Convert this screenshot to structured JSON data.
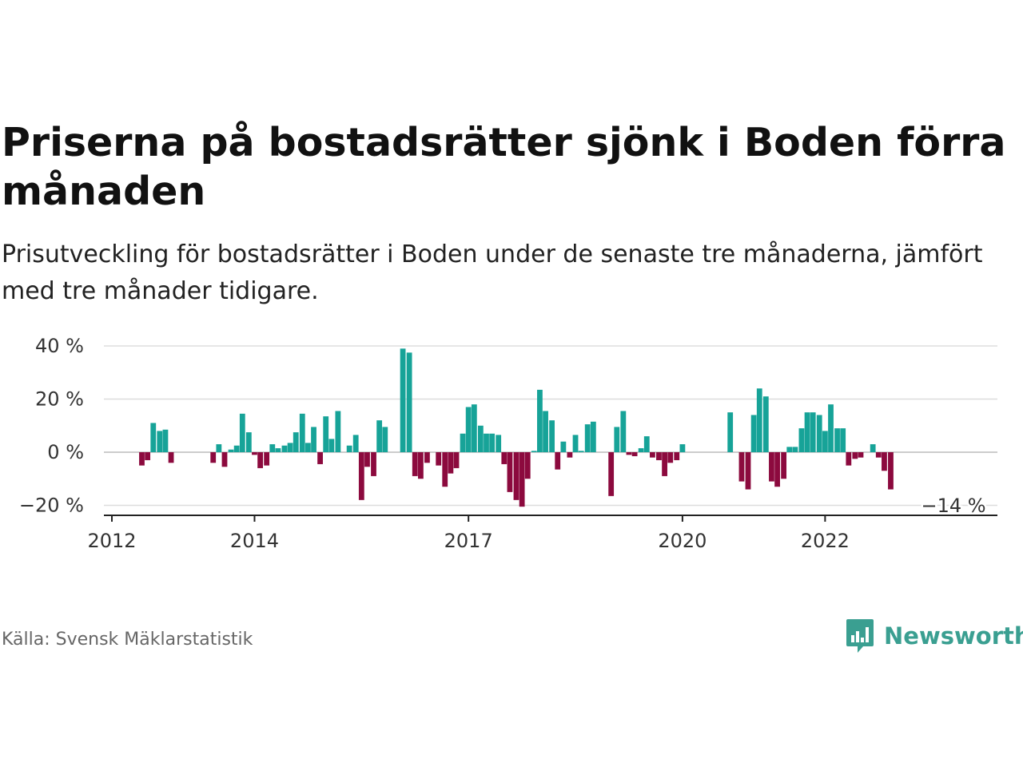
{
  "title": "Priserna på bostadsrätter sjönk i Boden förra månaden",
  "subtitle": "Prisutveckling för bostadsrätter i Boden under de senaste tre månaderna, jämfört med tre månader tidigare.",
  "source": "Källa: Svensk Mäklarstatistik",
  "brand": {
    "name": "Newsworthy",
    "icon": "newsworthy-chart-bubble-icon",
    "color": "#3a9f91"
  },
  "colors": {
    "positive": "#17a398",
    "negative": "#8c0a3e",
    "grid": "#dddddd",
    "axis": "#222222"
  },
  "chart_data": {
    "type": "bar",
    "title": "Priserna på bostadsrätter sjönk i Boden förra månaden",
    "ylim": [
      -24,
      42
    ],
    "yticks": [
      40,
      20,
      0,
      -20
    ],
    "ytick_labels": [
      "40 %",
      "20 %",
      "0 %",
      "−20 %"
    ],
    "xlim": [
      2012,
      2023.8
    ],
    "xticks": [
      2012,
      2014,
      2017,
      2020,
      2022
    ],
    "xtick_labels": [
      "2012",
      "2014",
      "2017",
      "2020",
      "2022"
    ],
    "annotation": {
      "label": "−14 %",
      "x": 2022.92,
      "y": -14
    },
    "grid": true,
    "legend": "none",
    "x": [
      2012.42,
      2012.5,
      2012.58,
      2012.67,
      2012.75,
      2012.83,
      2013.42,
      2013.5,
      2013.58,
      2013.67,
      2013.75,
      2013.83,
      2013.92,
      2014.0,
      2014.08,
      2014.17,
      2014.25,
      2014.33,
      2014.42,
      2014.5,
      2014.58,
      2014.67,
      2014.75,
      2014.83,
      2014.92,
      2015.0,
      2015.08,
      2015.17,
      2015.33,
      2015.42,
      2015.5,
      2015.58,
      2015.67,
      2015.75,
      2015.83,
      2015.92,
      2016.08,
      2016.17,
      2016.25,
      2016.33,
      2016.42,
      2016.58,
      2016.67,
      2016.75,
      2016.83,
      2016.92,
      2017.0,
      2017.08,
      2017.17,
      2017.25,
      2017.33,
      2017.42,
      2017.5,
      2017.58,
      2017.67,
      2017.75,
      2017.83,
      2017.92,
      2018.0,
      2018.08,
      2018.17,
      2018.25,
      2018.33,
      2018.42,
      2018.5,
      2018.58,
      2018.67,
      2018.75,
      2018.83,
      2019.0,
      2019.08,
      2019.17,
      2019.25,
      2019.33,
      2019.42,
      2019.5,
      2019.58,
      2019.67,
      2019.75,
      2019.83,
      2019.92,
      2020.0,
      2020.08,
      2020.67,
      2020.83,
      2020.92,
      2021.0,
      2021.08,
      2021.17,
      2021.25,
      2021.33,
      2021.42,
      2021.5,
      2021.58,
      2021.67,
      2021.75,
      2021.83,
      2021.92,
      2022.0,
      2022.08,
      2022.17,
      2022.25,
      2022.33,
      2022.42,
      2022.5,
      2022.58,
      2022.67,
      2022.75,
      2022.83,
      2022.92
    ],
    "values": [
      -5,
      -3,
      11,
      8,
      8.5,
      -4,
      -4,
      3,
      -5.5,
      1,
      2.5,
      14.5,
      7.5,
      -1,
      -6,
      -5,
      3,
      1.5,
      2.5,
      3.5,
      7.5,
      14.5,
      3.5,
      9.5,
      -4.5,
      13.5,
      5,
      15.5,
      2.5,
      6.5,
      -18,
      -5.5,
      -9,
      12,
      9.5,
      0,
      39,
      37.5,
      -9,
      -10,
      -4,
      -5,
      -13,
      -8,
      -6,
      7,
      17,
      18,
      10,
      7,
      7,
      6.5,
      -4.5,
      -15,
      -18,
      -20.5,
      -10,
      0.5,
      23.5,
      15.5,
      12,
      -6.5,
      4,
      -2,
      6.5,
      0.5,
      10.5,
      11.5,
      0,
      -16.5,
      9.5,
      15.5,
      -1,
      -1.5,
      1.5,
      6,
      -2,
      -3,
      -9,
      -4,
      -3,
      3,
      0,
      15,
      -11,
      -14,
      14,
      24,
      21,
      -11,
      -13,
      -10,
      2,
      2,
      9,
      15,
      15,
      14,
      8,
      18,
      9,
      9,
      -5,
      -2.5,
      -2,
      0,
      3,
      -2,
      -7,
      -14
    ]
  }
}
